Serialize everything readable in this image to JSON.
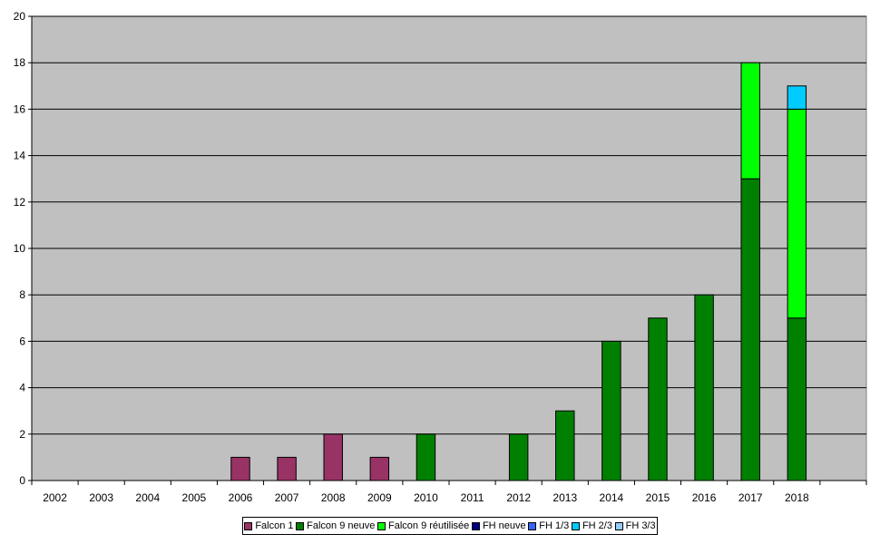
{
  "chart_data": {
    "type": "bar",
    "stacked": true,
    "title": "",
    "xlabel": "",
    "ylabel": "",
    "categories": [
      "2002",
      "2003",
      "2004",
      "2005",
      "2006",
      "2007",
      "2008",
      "2009",
      "2010",
      "2011",
      "2012",
      "2013",
      "2014",
      "2015",
      "2016",
      "2017",
      "2018"
    ],
    "ylim": [
      0,
      20
    ],
    "yticks": [
      0,
      2,
      4,
      6,
      8,
      10,
      12,
      14,
      16,
      18,
      20
    ],
    "grid": true,
    "legend_position": "bottom",
    "plot_background": "#c0c0c0",
    "series": [
      {
        "name": "Falcon 1",
        "color": "#993366",
        "values": [
          0,
          0,
          0,
          0,
          1,
          1,
          2,
          1,
          0,
          0,
          0,
          0,
          0,
          0,
          0,
          0,
          0
        ]
      },
      {
        "name": "Falcon 9 neuve",
        "color": "#008000",
        "values": [
          0,
          0,
          0,
          0,
          0,
          0,
          0,
          0,
          2,
          0,
          2,
          3,
          6,
          7,
          8,
          13,
          7
        ]
      },
      {
        "name": "Falcon 9 réutilisée",
        "color": "#00ff00",
        "values": [
          0,
          0,
          0,
          0,
          0,
          0,
          0,
          0,
          0,
          0,
          0,
          0,
          0,
          0,
          0,
          5,
          9
        ]
      },
      {
        "name": "FH neuve",
        "color": "#000080",
        "values": [
          0,
          0,
          0,
          0,
          0,
          0,
          0,
          0,
          0,
          0,
          0,
          0,
          0,
          0,
          0,
          0,
          0
        ]
      },
      {
        "name": "FH 1/3",
        "color": "#3366ff",
        "values": [
          0,
          0,
          0,
          0,
          0,
          0,
          0,
          0,
          0,
          0,
          0,
          0,
          0,
          0,
          0,
          0,
          0
        ]
      },
      {
        "name": "FH 2/3",
        "color": "#00ccff",
        "values": [
          0,
          0,
          0,
          0,
          0,
          0,
          0,
          0,
          0,
          0,
          0,
          0,
          0,
          0,
          0,
          0,
          1
        ]
      },
      {
        "name": "FH 3/3",
        "color": "#99ccff",
        "values": [
          0,
          0,
          0,
          0,
          0,
          0,
          0,
          0,
          0,
          0,
          0,
          0,
          0,
          0,
          0,
          0,
          0
        ]
      }
    ]
  }
}
